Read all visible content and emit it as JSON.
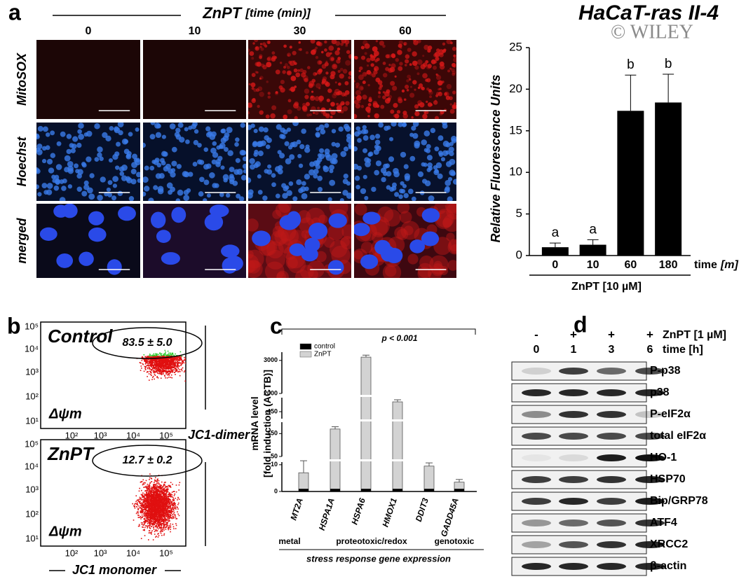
{
  "panel_a": {
    "letter": "a",
    "treatment": "ZnPT",
    "treatment_unit": "[time (min)]",
    "times": [
      "0",
      "10",
      "30",
      "60"
    ],
    "rows": [
      "MitoSOX",
      "Hoechst",
      "merged"
    ],
    "cell_line": "HaCaT-ras II-4",
    "watermark": "© WILEY"
  },
  "panel_b": {
    "letter": "b",
    "plots": [
      {
        "name": "Control",
        "gate": "83.5 ± 5.0",
        "axis_label": "Δψm"
      },
      {
        "name": "ZnPT",
        "gate": "12.7 ± 0.2",
        "axis_label": "Δψm"
      }
    ],
    "ticks": [
      "10¹",
      "10²",
      "10³",
      "10⁴",
      "10⁵"
    ],
    "y_label": "JC1-dimer",
    "x_label": "JC1 monomer"
  },
  "panel_d": {
    "letter": "d",
    "treatment_signs": [
      "-",
      "+",
      "+",
      "+"
    ],
    "treatment": "ZnPT [1 µM]",
    "times": [
      "0",
      "1",
      "3",
      "6"
    ],
    "time_label": "time [h]",
    "proteins": [
      "P-p38",
      "p38",
      "P-eIF2α",
      "total eIF2α",
      "HO-1",
      "HSP70",
      "Bip/GRP78",
      "ATF4",
      "XRCC2",
      "β-actin"
    ]
  },
  "chart_data": [
    {
      "type": "bar",
      "y_label": "Relative Fluorescence Units",
      "categories": [
        "0",
        "10",
        "60",
        "180"
      ],
      "values": [
        1.0,
        1.3,
        17.4,
        18.4
      ],
      "errors": [
        0.5,
        0.6,
        4.3,
        3.4
      ],
      "annotations": [
        "a",
        "a",
        "b",
        "b"
      ],
      "x_label": "time",
      "x_unit": "[m]",
      "group_label": "ZnPT [10 µM]",
      "ylim": [
        0,
        25
      ],
      "yticks": [
        0,
        5,
        10,
        15,
        20,
        25
      ],
      "color": "#000000"
    },
    {
      "type": "broken_bar",
      "letter": "c",
      "y_label": [
        "mRNA level",
        "[fold induction (ACTB)]"
      ],
      "categories": [
        "MT2A",
        "HSPA1A",
        "HSPA6",
        "HMOX1",
        "DDIT3",
        "GADD45A"
      ],
      "series": [
        {
          "name": "control",
          "color": "#000000",
          "values": [
            1,
            1,
            1,
            1,
            1,
            1
          ]
        },
        {
          "name": "ZnPT",
          "color": "#d3d3d3",
          "values": [
            7,
            170,
            3100,
            520,
            9.5,
            3.5
          ],
          "errors": [
            4.5,
            10,
            60,
            15,
            1.2,
            1.0
          ]
        }
      ],
      "segments": [
        [
          0,
          11
        ],
        [
          50,
          200
        ],
        [
          400,
          550
        ],
        [
          2000,
          3250
        ]
      ],
      "yticks": [
        0,
        10,
        50,
        150,
        450,
        2000,
        3000
      ],
      "significance": "p < 0.001",
      "groups": [
        "metal",
        "proteotoxic/redox",
        "genotoxic"
      ],
      "footer": "stress response gene expression"
    }
  ]
}
